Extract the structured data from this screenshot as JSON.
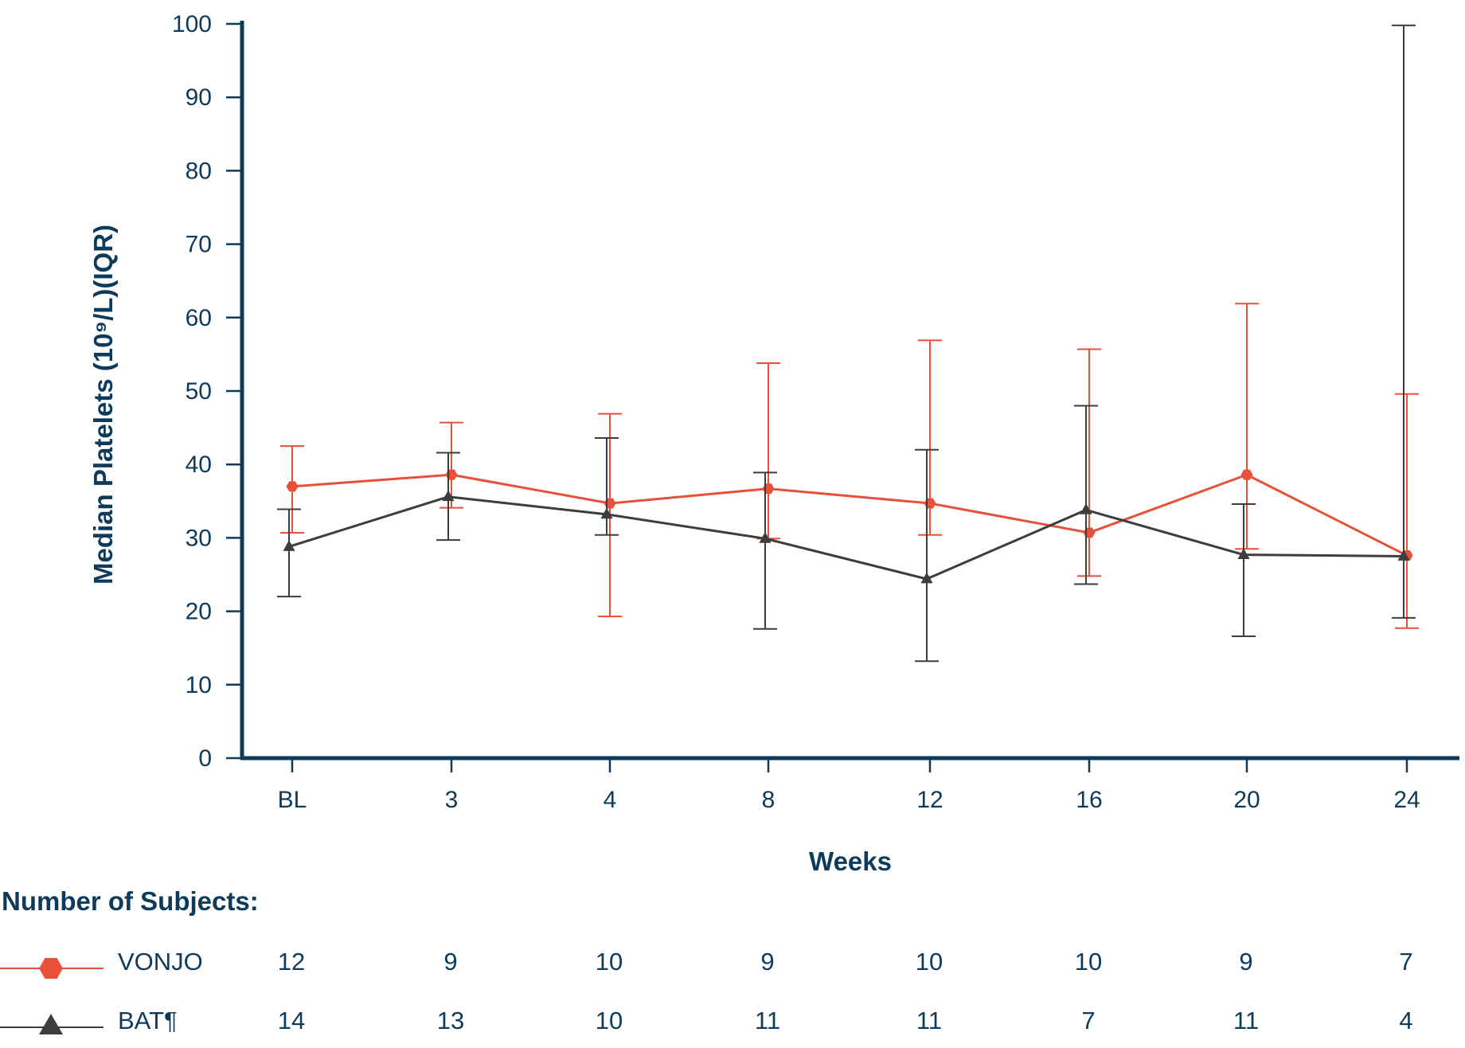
{
  "chart_data": {
    "type": "line",
    "title": "",
    "xlabel": "Weeks",
    "ylabel": "Median Platelets (10⁹/L)(IQR)",
    "ylim": [
      0,
      100
    ],
    "yticks": [
      0,
      10,
      20,
      30,
      40,
      50,
      60,
      70,
      80,
      90,
      100
    ],
    "categories": [
      "BL",
      "3",
      "4",
      "8",
      "12",
      "16",
      "20",
      "24"
    ],
    "grid": false,
    "series": [
      {
        "name": "VONJO",
        "color": "#e8503a",
        "marker": "hexagon",
        "values": [
          37,
          38.6,
          34.7,
          36.7,
          34.7,
          30.7,
          38.6,
          27.6
        ],
        "q1": [
          30.7,
          34.1,
          19.3,
          29.9,
          30.4,
          24.8,
          28.5,
          17.7
        ],
        "q3": [
          42.5,
          45.7,
          46.9,
          53.8,
          56.9,
          55.7,
          61.9,
          49.6
        ],
        "n": [
          "12",
          "9",
          "10",
          "9",
          "10",
          "10",
          "9",
          "7"
        ]
      },
      {
        "name": "BAT¶",
        "color": "#3d3d3d",
        "marker": "triangle",
        "values": [
          28.8,
          35.6,
          33.2,
          29.9,
          24.4,
          33.8,
          27.7,
          27.5
        ],
        "q1": [
          22.0,
          29.7,
          30.4,
          17.6,
          13.2,
          23.7,
          16.6,
          19.1
        ],
        "q3": [
          33.9,
          41.6,
          43.6,
          38.9,
          42.0,
          48.0,
          34.6,
          99.8
        ],
        "n": [
          "14",
          "13",
          "10",
          "11",
          "11",
          "7",
          "11",
          "4"
        ]
      }
    ]
  },
  "subjects_table": {
    "heading": "Number of Subjects:"
  }
}
